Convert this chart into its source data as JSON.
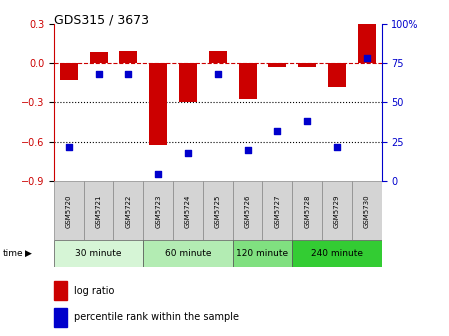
{
  "title": "GDS315 / 3673",
  "samples": [
    "GSM5720",
    "GSM5721",
    "GSM5722",
    "GSM5723",
    "GSM5724",
    "GSM5725",
    "GSM5726",
    "GSM5727",
    "GSM5728",
    "GSM5729",
    "GSM5730"
  ],
  "log_ratios": [
    -0.13,
    0.08,
    0.09,
    -0.62,
    -0.3,
    0.09,
    -0.27,
    -0.03,
    -0.03,
    -0.18,
    0.3
  ],
  "percentile_ranks": [
    22,
    68,
    68,
    5,
    18,
    68,
    20,
    32,
    38,
    22,
    78
  ],
  "time_groups": [
    {
      "label": "30 minute",
      "start": 0,
      "end": 3
    },
    {
      "label": "60 minute",
      "start": 3,
      "end": 6
    },
    {
      "label": "120 minute",
      "start": 6,
      "end": 8
    },
    {
      "label": "240 minute",
      "start": 8,
      "end": 11
    }
  ],
  "time_colors": [
    "#d6f5d6",
    "#b3ecb3",
    "#80e080",
    "#33cc33"
  ],
  "bar_color": "#cc0000",
  "scatter_color": "#0000cc",
  "ylim_left": [
    -0.9,
    0.3
  ],
  "ylim_right": [
    0,
    100
  ],
  "yticks_left": [
    -0.9,
    -0.6,
    -0.3,
    0.0,
    0.3
  ],
  "yticks_right": [
    0,
    25,
    50,
    75,
    100
  ],
  "dotted_lines": [
    -0.3,
    -0.6
  ],
  "background_color": "#ffffff"
}
